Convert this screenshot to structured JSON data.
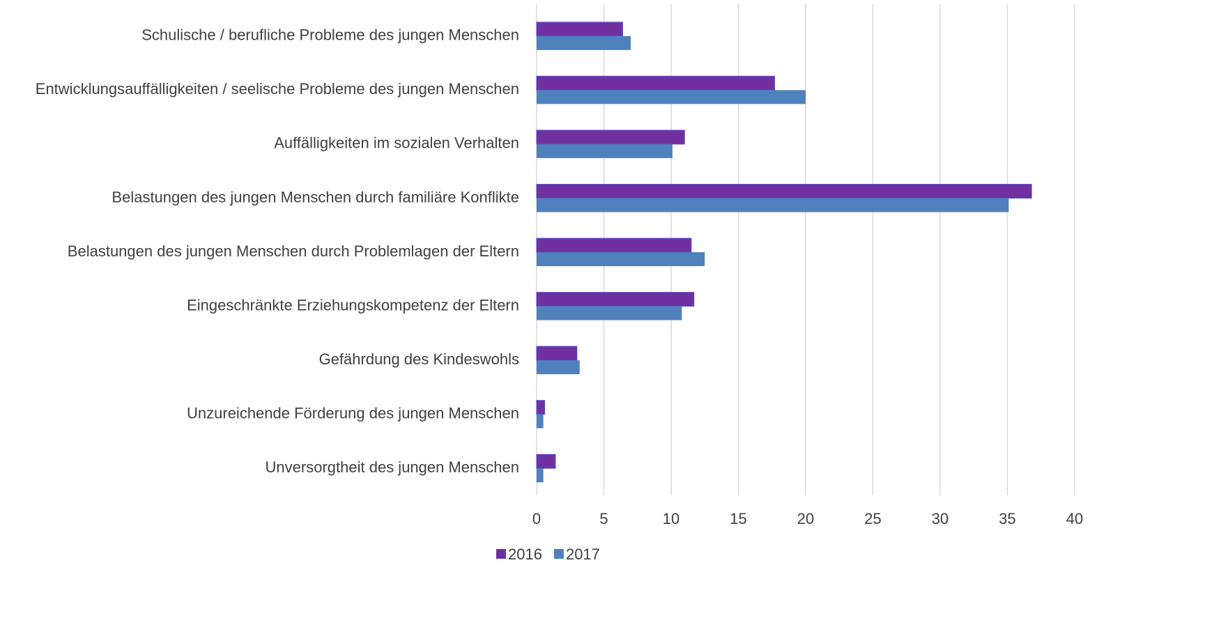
{
  "chart_data": {
    "type": "bar",
    "orientation": "horizontal",
    "categories": [
      "Schulische / berufliche Probleme des jungen Menschen",
      "Entwicklungsauffälligkeiten / seelische Probleme des jungen Menschen",
      "Auffälligkeiten im sozialen Verhalten",
      "Belastungen des jungen Menschen durch familiäre Konflikte",
      "Belastungen des jungen Menschen durch Problemlagen der Eltern",
      "Eingeschränkte Erziehungskompetenz der Eltern",
      "Gefährdung des Kindeswohls",
      "Unzureichende Förderung des jungen Menschen",
      "Unversorgtheit des jungen Menschen"
    ],
    "series": [
      {
        "name": "2016",
        "color": "#7030a0",
        "values": [
          6.4,
          17.7,
          11.0,
          36.8,
          11.5,
          11.7,
          3.0,
          0.6,
          1.4
        ]
      },
      {
        "name": "2017",
        "color": "#4f81bd",
        "values": [
          7.0,
          20.0,
          10.1,
          35.1,
          12.5,
          10.8,
          3.2,
          0.5,
          0.5
        ]
      }
    ],
    "xlim": [
      0,
      40
    ],
    "xticks": [
      0,
      5,
      10,
      15,
      20,
      25,
      30,
      35,
      40
    ],
    "grid": true,
    "legend": "bottom"
  }
}
